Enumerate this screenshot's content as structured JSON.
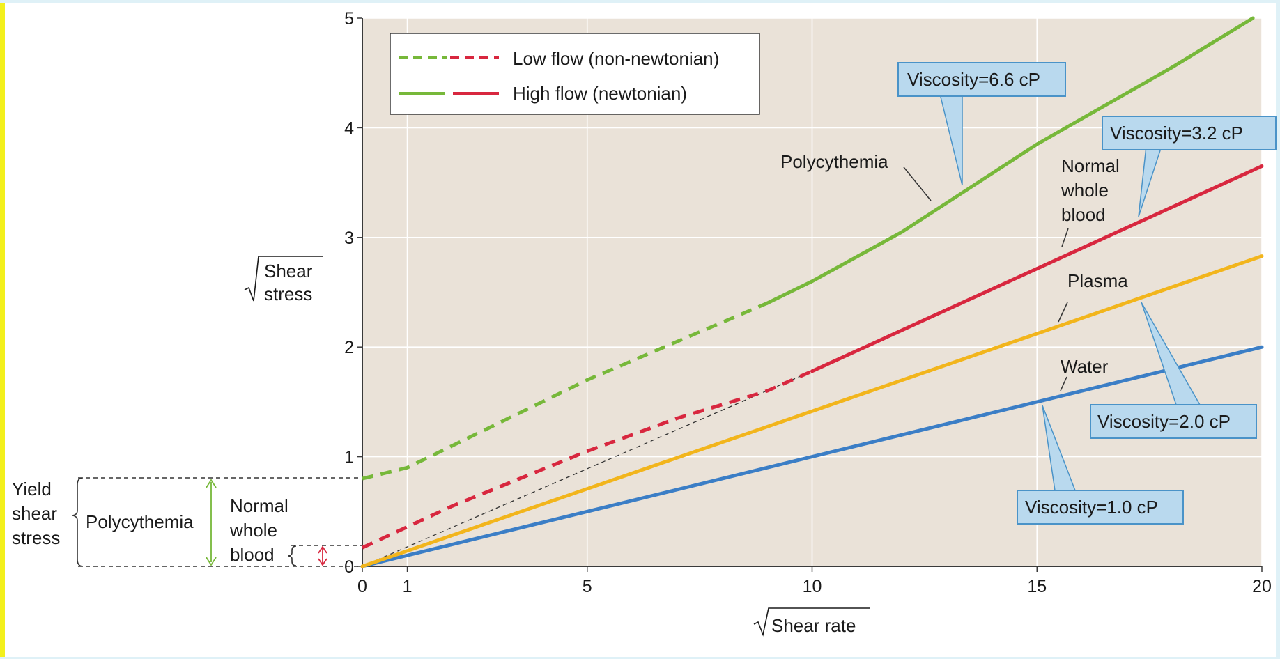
{
  "chart_data": {
    "type": "line",
    "xlabel": "Shear rate",
    "ylabel_lines": [
      "Shear",
      "stress"
    ],
    "xlim": [
      0,
      20
    ],
    "ylim": [
      0,
      5
    ],
    "x_ticks": [
      "0",
      "1",
      "5",
      "10",
      "15",
      "20"
    ],
    "y_ticks": [
      "0",
      "1",
      "2",
      "3",
      "4",
      "5"
    ],
    "grid": true,
    "background_color": "#eae2d8",
    "legend": {
      "position": "top-left",
      "entries": [
        {
          "label": "Low flow (non-newtonian)",
          "style": "dashed",
          "colors": [
            "#77b83a",
            "#d8273f"
          ]
        },
        {
          "label": "High flow (newtonian)",
          "style": "solid",
          "colors": [
            "#77b83a",
            "#d8273f"
          ]
        }
      ]
    },
    "series": [
      {
        "label": "Polycythemia",
        "color": "#77b83a",
        "low_flow": [
          [
            0,
            0.8
          ],
          [
            1,
            0.9
          ],
          [
            3,
            1.3
          ],
          [
            5,
            1.7
          ],
          [
            7,
            2.05
          ],
          [
            9,
            2.4
          ]
        ],
        "high_flow": [
          [
            9,
            2.4
          ],
          [
            10,
            2.6
          ],
          [
            12,
            3.05
          ],
          [
            15,
            3.85
          ],
          [
            18,
            4.55
          ],
          [
            19.8,
            5.0
          ]
        ]
      },
      {
        "label": "Normal whole blood",
        "color": "#d8273f",
        "low_flow": [
          [
            0,
            0.17
          ],
          [
            2,
            0.55
          ],
          [
            5,
            1.05
          ],
          [
            7,
            1.35
          ],
          [
            9,
            1.6
          ],
          [
            10,
            1.78
          ]
        ],
        "high_flow": [
          [
            10,
            1.78
          ],
          [
            20,
            3.65
          ]
        ]
      },
      {
        "label": "Plasma",
        "color": "#f2b51c",
        "high_flow": [
          [
            0,
            0
          ],
          [
            20,
            2.83
          ]
        ]
      },
      {
        "label": "Water",
        "color": "#3b7ec6",
        "high_flow": [
          [
            0,
            0
          ],
          [
            20,
            2.0
          ]
        ]
      }
    ],
    "reference_line": {
      "style": "dashed",
      "color": "#333333",
      "points": [
        [
          0,
          0
        ],
        [
          10,
          1.78
        ]
      ]
    },
    "callouts": [
      {
        "text": "Viscosity=6.6 cP"
      },
      {
        "text": "Viscosity=3.2 cP"
      },
      {
        "text": "Viscosity=2.0 cP"
      },
      {
        "text": "Viscosity=1.0 cP"
      }
    ],
    "yield_annotation": {
      "title_lines": [
        "Yield",
        "shear",
        "stress"
      ],
      "polycythemia_label": "Polycythemia",
      "normal_label_lines": [
        "Normal",
        "whole",
        "blood"
      ],
      "polycythemia_value": 0.8,
      "normal_value": 0.17
    },
    "curve_labels": {
      "polycythemia": "Polycythemia",
      "normal_lines": [
        "Normal",
        "whole",
        "blood"
      ],
      "plasma": "Plasma",
      "water": "Water"
    }
  }
}
